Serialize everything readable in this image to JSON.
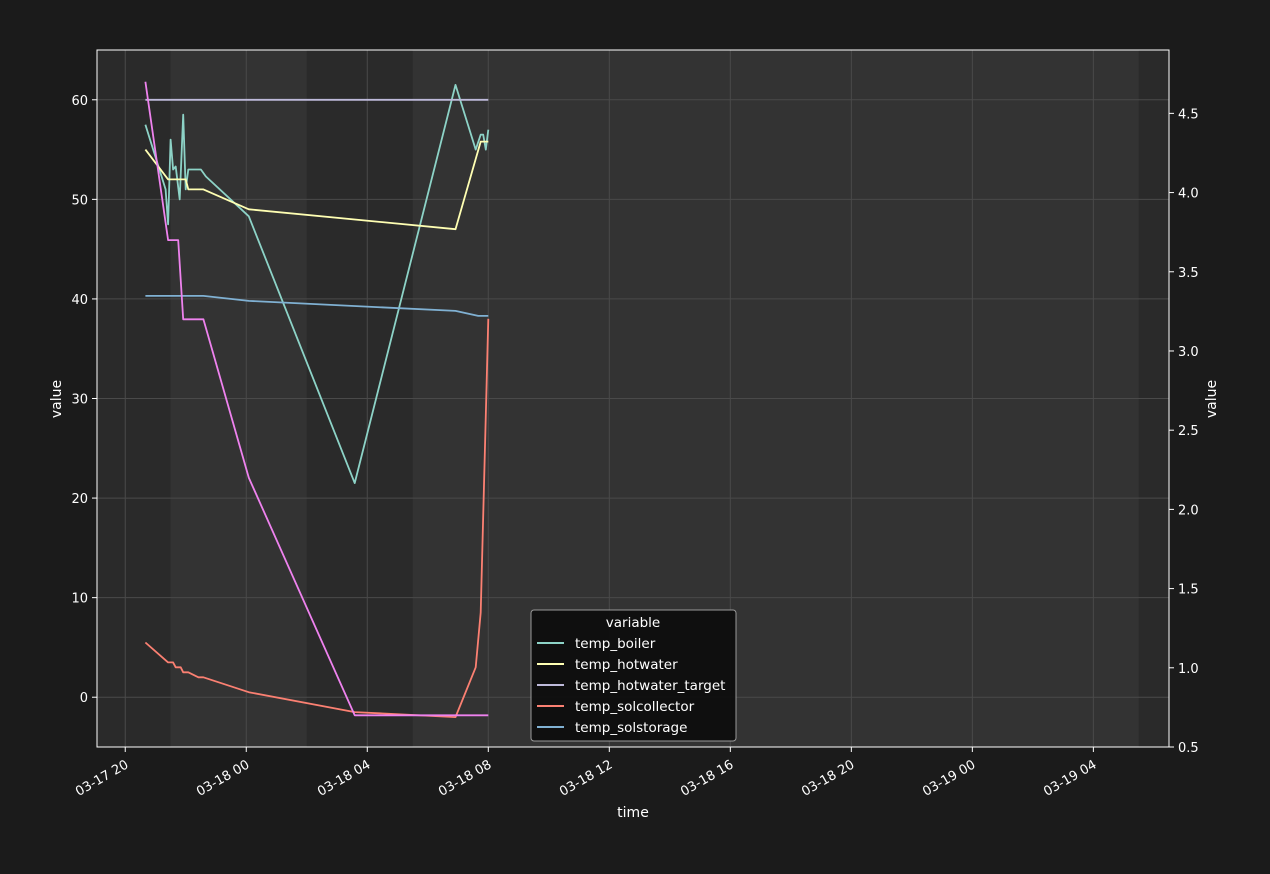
{
  "chart_data": {
    "type": "line",
    "title": "",
    "xlabel": "time",
    "ylabel": "value",
    "y2label": "value",
    "grid": true,
    "legend_title": "variable",
    "legend_placement": "lower-center",
    "x_ticks": [
      "03-17 20",
      "03-18 00",
      "03-18 04",
      "03-18 08",
      "03-18 12",
      "03-18 16",
      "03-18 20",
      "03-19 00",
      "03-19 04"
    ],
    "y_ticks": [
      "0",
      "10",
      "20",
      "30",
      "40",
      "50",
      "60"
    ],
    "y2_ticks": [
      "0.5",
      "1.0",
      "1.5",
      "2.0",
      "2.5",
      "3.0",
      "3.5",
      "4.0",
      "4.5"
    ],
    "ylim": [
      -5,
      65
    ],
    "y2lim": [
      0.5,
      4.9
    ],
    "xlim": [
      "2024-03-17 19:04",
      "2024-03-19 06:30"
    ],
    "shading_bands": [
      [
        "2024-03-17 19:04",
        "2024-03-17 21:30"
      ],
      [
        "2024-03-18 02:00",
        "2024-03-18 05:30"
      ],
      [
        "2024-03-19 05:30",
        "2024-03-19 06:30"
      ]
    ],
    "series": [
      {
        "name": "temp_boiler",
        "color": "#8dd3c7",
        "points": [
          [
            "2024-03-17 20:40",
            57.5
          ],
          [
            "2024-03-17 21:20",
            51.0
          ],
          [
            "2024-03-17 21:25",
            47.5
          ],
          [
            "2024-03-17 21:30",
            56.0
          ],
          [
            "2024-03-17 21:35",
            53.0
          ],
          [
            "2024-03-17 21:40",
            53.3
          ],
          [
            "2024-03-17 21:48",
            50.0
          ],
          [
            "2024-03-17 21:55",
            58.5
          ],
          [
            "2024-03-17 22:00",
            51.0
          ],
          [
            "2024-03-17 22:05",
            53.0
          ],
          [
            "2024-03-17 22:30",
            53.0
          ],
          [
            "2024-03-17 22:40",
            52.3
          ],
          [
            "2024-03-18 00:05",
            48.3
          ],
          [
            "2024-03-18 03:35",
            21.5
          ],
          [
            "2024-03-18 06:55",
            61.5
          ],
          [
            "2024-03-18 07:35",
            55.0
          ],
          [
            "2024-03-18 07:45",
            56.5
          ],
          [
            "2024-03-18 07:50",
            56.5
          ],
          [
            "2024-03-18 07:55",
            55.0
          ],
          [
            "2024-03-18 08:00",
            57.0
          ]
        ]
      },
      {
        "name": "temp_hotwater",
        "color": "#ffffb3",
        "points": [
          [
            "2024-03-17 20:40",
            55.0
          ],
          [
            "2024-03-17 21:25",
            52.0
          ],
          [
            "2024-03-17 22:00",
            52.0
          ],
          [
            "2024-03-17 22:05",
            51.0
          ],
          [
            "2024-03-17 22:35",
            51.0
          ],
          [
            "2024-03-18 00:05",
            49.0
          ],
          [
            "2024-03-18 06:55",
            47.0
          ],
          [
            "2024-03-18 07:45",
            55.8
          ],
          [
            "2024-03-18 08:00",
            55.8
          ]
        ]
      },
      {
        "name": "temp_hotwater_target",
        "color": "#bebada",
        "points": [
          [
            "2024-03-17 20:40",
            60.0
          ],
          [
            "2024-03-18 08:00",
            60.0
          ]
        ]
      },
      {
        "name": "temp_solcollector",
        "color": "#fb8072",
        "points": [
          [
            "2024-03-17 20:40",
            5.5
          ],
          [
            "2024-03-17 21:25",
            3.5
          ],
          [
            "2024-03-17 21:35",
            3.5
          ],
          [
            "2024-03-17 21:40",
            3.0
          ],
          [
            "2024-03-17 21:50",
            3.0
          ],
          [
            "2024-03-17 21:55",
            2.5
          ],
          [
            "2024-03-17 22:05",
            2.5
          ],
          [
            "2024-03-17 22:25",
            2.0
          ],
          [
            "2024-03-17 22:35",
            2.0
          ],
          [
            "2024-03-18 00:05",
            0.5
          ],
          [
            "2024-03-18 03:35",
            -1.5
          ],
          [
            "2024-03-18 06:55",
            -2.0
          ],
          [
            "2024-03-18 07:35",
            3.0
          ],
          [
            "2024-03-18 07:45",
            8.5
          ],
          [
            "2024-03-18 08:00",
            38.0
          ]
        ]
      },
      {
        "name": "temp_solstorage",
        "color": "#80b1d3",
        "points": [
          [
            "2024-03-17 20:40",
            40.3
          ],
          [
            "2024-03-17 22:35",
            40.3
          ],
          [
            "2024-03-18 00:05",
            39.8
          ],
          [
            "2024-03-18 06:55",
            38.8
          ],
          [
            "2024-03-18 07:40",
            38.3
          ],
          [
            "2024-03-18 08:00",
            38.3
          ]
        ]
      },
      {
        "name": "",
        "axis": "right",
        "color": "#ee82ee",
        "points": [
          [
            "2024-03-17 20:40",
            4.7
          ],
          [
            "2024-03-17 21:25",
            3.7
          ],
          [
            "2024-03-17 21:45",
            3.7
          ],
          [
            "2024-03-17 21:55",
            3.2
          ],
          [
            "2024-03-17 22:35",
            3.2
          ],
          [
            "2024-03-18 00:05",
            2.2
          ],
          [
            "2024-03-18 03:35",
            0.7
          ],
          [
            "2024-03-18 08:00",
            0.7
          ]
        ]
      }
    ]
  }
}
